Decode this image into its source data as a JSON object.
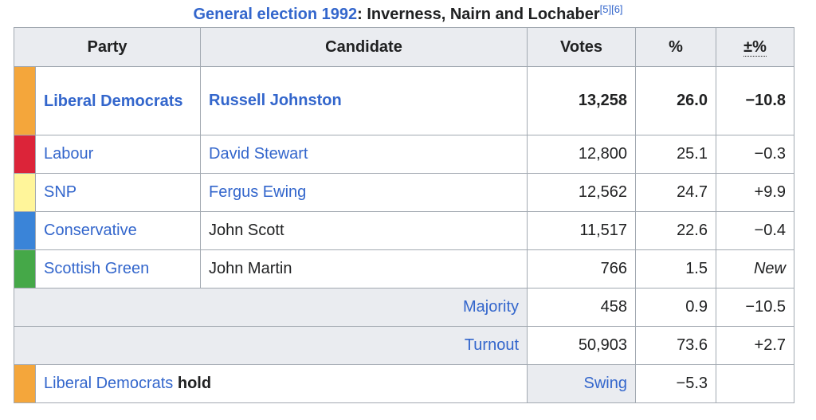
{
  "caption": {
    "link_text": "General election 1992",
    "rest_text": ": Inverness, Nairn and Lochaber",
    "refs": "[5][6]"
  },
  "headers": {
    "party": "Party",
    "candidate": "Candidate",
    "votes": "Votes",
    "percent": "%",
    "change": "±%"
  },
  "rows": [
    {
      "color": "#f4a63b",
      "party": "Liberal Democrats",
      "candidate": "Russell Johnston",
      "votes": "13,258",
      "percent": "26.0",
      "change": "−10.8"
    },
    {
      "color": "#dc2439",
      "party": "Labour",
      "candidate": "David Stewart",
      "votes": "12,800",
      "percent": "25.1",
      "change": "−0.3"
    },
    {
      "color": "#fff59a",
      "party": "SNP",
      "candidate": "Fergus Ewing",
      "votes": "12,562",
      "percent": "24.7",
      "change": "+9.9"
    },
    {
      "color": "#3a84d8",
      "party": "Conservative",
      "candidate": "John Scott",
      "votes": "11,517",
      "percent": "22.6",
      "change": "−0.4"
    },
    {
      "color": "#45a848",
      "party": "Scottish Green",
      "candidate": "John Martin",
      "votes": "766",
      "percent": "1.5",
      "change": "New"
    }
  ],
  "majority": {
    "label": "Majority",
    "votes": "458",
    "percent": "0.9",
    "change": "−10.5"
  },
  "turnout": {
    "label": "Turnout",
    "votes": "50,903",
    "percent": "73.6",
    "change": "+2.7"
  },
  "hold": {
    "color": "#f4a63b",
    "party": "Liberal Democrats",
    "hold_word": "hold",
    "swing_label": "Swing",
    "swing_value": "−5.3"
  }
}
